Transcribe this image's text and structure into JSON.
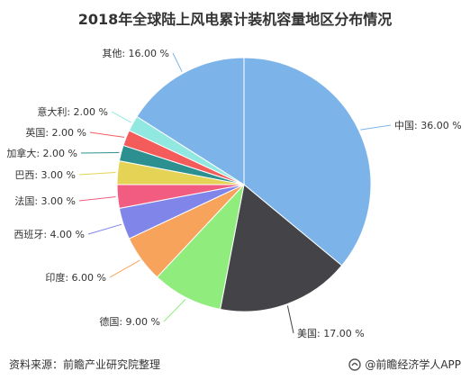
{
  "chart_data": {
    "type": "pie",
    "title": "2018年全球陆上风电累计装机容量地区分布情况",
    "slices": [
      {
        "label": "中国",
        "value": 36.0,
        "display": "中国: 36.00 %",
        "color": "#7cb4ea"
      },
      {
        "label": "美国",
        "value": 17.0,
        "display": "美国: 17.00 %",
        "color": "#434348"
      },
      {
        "label": "德国",
        "value": 9.0,
        "display": "德国: 9.00 %",
        "color": "#90ed7d"
      },
      {
        "label": "印度",
        "value": 6.0,
        "display": "印度: 6.00 %",
        "color": "#f7a35c"
      },
      {
        "label": "西班牙",
        "value": 4.0,
        "display": "西班牙: 4.00 %",
        "color": "#8085e9"
      },
      {
        "label": "法国",
        "value": 3.0,
        "display": "法国: 3.00 %",
        "color": "#f15c80"
      },
      {
        "label": "巴西",
        "value": 3.0,
        "display": "巴西: 3.00 %",
        "color": "#e4d354"
      },
      {
        "label": "加拿大",
        "value": 2.0,
        "display": "加拿大: 2.00 %",
        "color": "#2b908f"
      },
      {
        "label": "英国",
        "value": 2.0,
        "display": "英国: 2.00 %",
        "color": "#f45b5b"
      },
      {
        "label": "意大利",
        "value": 2.0,
        "display": "意大利: 2.00 %",
        "color": "#91e8e1"
      },
      {
        "label": "其他",
        "value": 16.0,
        "display": "其他: 16.00 %",
        "color": "#7cb4ea"
      }
    ]
  },
  "footer": {
    "source": "资料来源：前瞻产业研究院整理",
    "brand": "@前瞻经济学人APP"
  }
}
